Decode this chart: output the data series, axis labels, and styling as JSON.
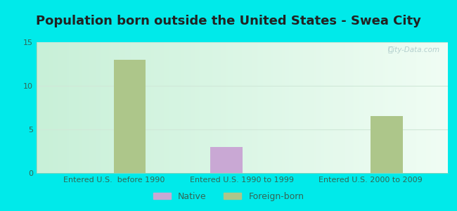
{
  "title": "Population born outside the United States - Swea City",
  "categories": [
    "Entered U.S.  before 1990",
    "Entered U.S. 1990 to 1999",
    "Entered U.S. 2000 to 2009"
  ],
  "native_values": [
    0,
    3,
    0
  ],
  "foreign_values": [
    13,
    0,
    6.5
  ],
  "native_color": "#c9a8d4",
  "foreign_color": "#adc68a",
  "background_outer": "#00eaea",
  "background_inner_left": "#c8f0d8",
  "background_inner_right": "#f0fdf4",
  "ylim": [
    0,
    15
  ],
  "yticks": [
    0,
    5,
    10,
    15
  ],
  "bar_width": 0.5,
  "title_fontsize": 13,
  "tick_fontsize": 8,
  "legend_labels": [
    "Native",
    "Foreign-born"
  ],
  "watermark": "City-Data.com",
  "title_color": "#222222",
  "tick_color": "#336655",
  "grid_color": "#d0e8d8"
}
